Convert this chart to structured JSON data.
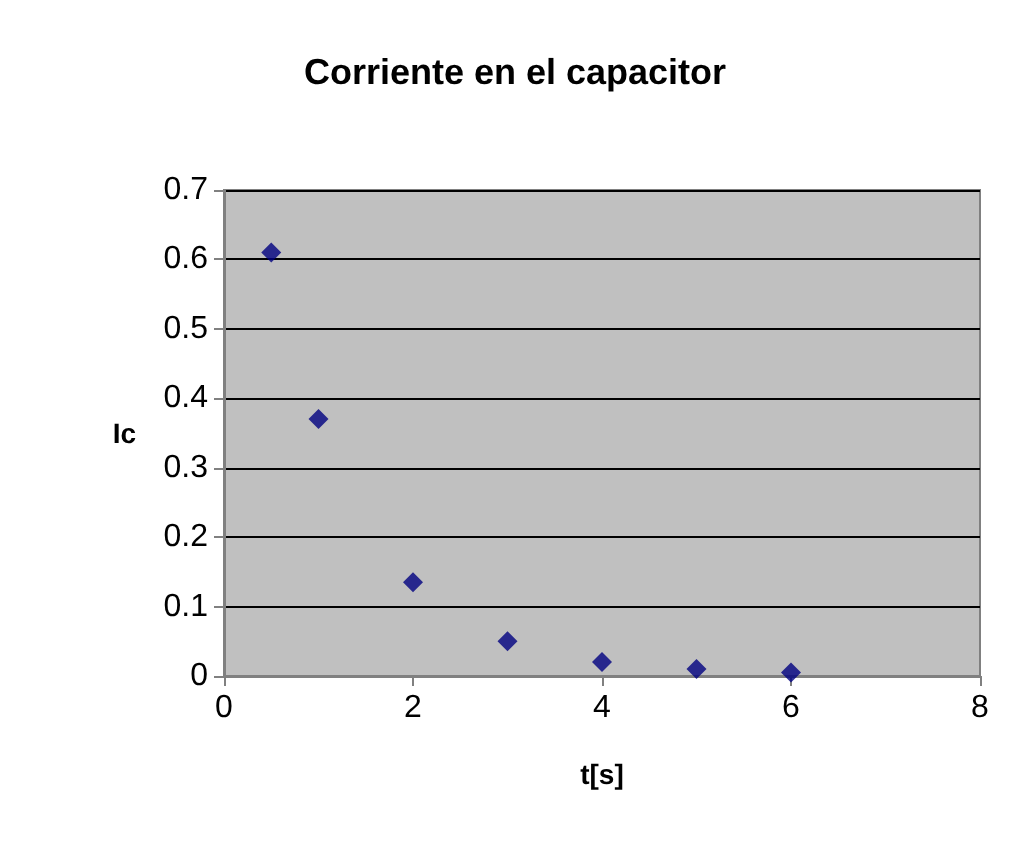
{
  "chart_data": {
    "type": "scatter",
    "title": "Corriente en el capacitor",
    "xlabel": "t[s]",
    "ylabel": "Ic",
    "x": [
      0.5,
      1,
      2,
      3,
      4,
      5,
      6
    ],
    "series": [
      {
        "color": "#000080",
        "values": [
          0.61,
          0.37,
          0.135,
          0.05,
          0.02,
          0.01,
          0.005
        ]
      }
    ],
    "xlim": [
      0,
      8
    ],
    "xticks": [
      0,
      2,
      4,
      6,
      8
    ],
    "ylim": [
      0,
      0.7
    ],
    "yticks": [
      0,
      0.1,
      0.2,
      0.3,
      0.4,
      0.5,
      0.6,
      0.7
    ],
    "grid": "y",
    "marker": "diamond"
  }
}
